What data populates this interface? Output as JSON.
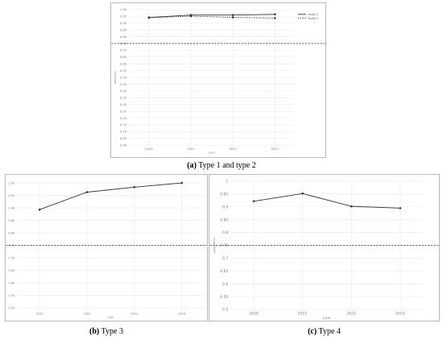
{
  "captions": [
    {
      "letter": "(a)",
      "text": "Type 1 and type 2"
    },
    {
      "letter": "(b)",
      "text": "Type 3"
    },
    {
      "letter": "(c)",
      "text": "Type 4"
    }
  ],
  "colors": {
    "line": "#333333",
    "grid": "#e9e9e9",
    "threshold": "#444444",
    "text": "#777777"
  },
  "chart_data": [
    {
      "type": "line",
      "xlabel": "year",
      "ylabel": "SIMILARITY",
      "x": [
        2020,
        2021,
        2022,
        2023
      ],
      "ylim": [
        0,
        1
      ],
      "yticks": [
        "0.00",
        "0.05",
        "0.10",
        "0.15",
        "0.20",
        "0.25",
        "0.30",
        "0.35",
        "0.40",
        "0.45",
        "0.50",
        "0.55",
        "0.60",
        "0.65",
        "0.70",
        "0.75",
        "0.80",
        "0.85",
        "0.90",
        "0.95",
        "1.00"
      ],
      "series": [
        {
          "name": "type 1",
          "values": [
            0.942,
            0.96,
            0.96,
            0.965
          ],
          "dash": "solid"
        },
        {
          "name": "type 2",
          "values": [
            0.94,
            0.952,
            0.943,
            0.937
          ],
          "dash": "dotted"
        }
      ],
      "threshold": 0.75,
      "legend": "right",
      "grid": true
    },
    {
      "type": "line",
      "xlabel": "year",
      "ylabel": "SIMILARITY",
      "x": [
        2020,
        2021,
        2022,
        2023
      ],
      "ylim": [
        0.49,
        1.01
      ],
      "yticks": [
        "0.50",
        "0.55",
        "0.60",
        "0.65",
        "0.70",
        "0.75",
        "0.80",
        "0.85",
        "0.90",
        "0.95",
        "1.00"
      ],
      "series": [
        {
          "values": [
            0.893,
            0.963,
            0.983,
            1.0
          ],
          "dash": "solid"
        }
      ],
      "threshold": 0.75,
      "grid": true
    },
    {
      "type": "line",
      "xlabel": "year",
      "ylabel": "SIMILARITY",
      "x": [
        2020,
        2021,
        2022,
        2023
      ],
      "ylim": [
        0.5,
        1.0
      ],
      "yticks": [
        "0.5",
        "0.55",
        "0.6",
        "0.65",
        "0.7",
        "0.75",
        "0.8",
        "0.85",
        "0.9",
        "0.95",
        "1"
      ],
      "series": [
        {
          "values": [
            0.922,
            0.952,
            0.902,
            0.895
          ],
          "dash": "solid"
        }
      ],
      "threshold": 0.75,
      "grid": true
    }
  ]
}
